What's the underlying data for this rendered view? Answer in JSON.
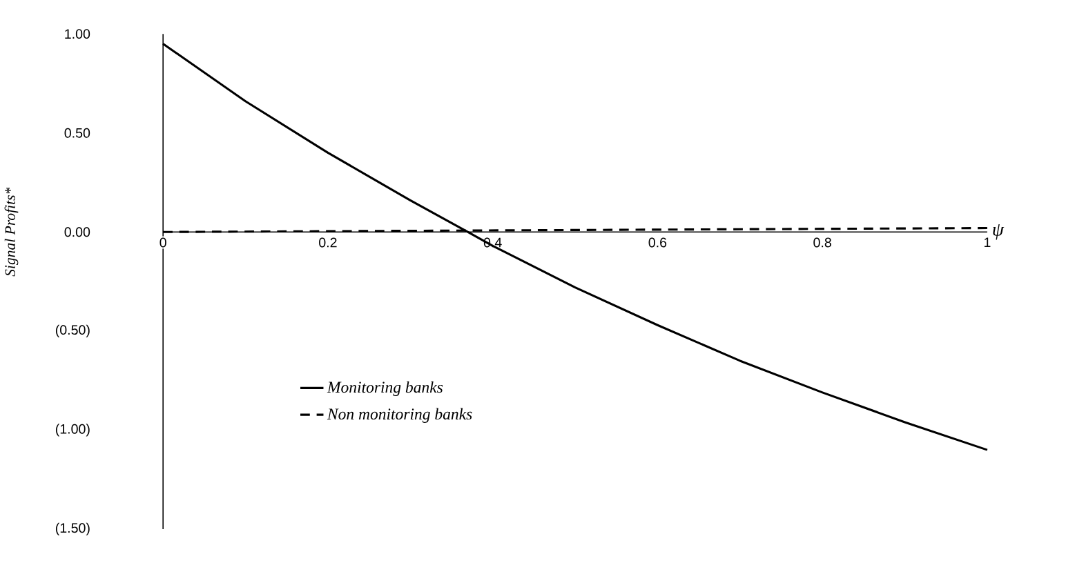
{
  "chart_data": {
    "type": "line",
    "xlabel": "ψ",
    "ylabel": "Signal Profits*",
    "xlim": [
      0,
      1
    ],
    "ylim": [
      -1.5,
      1.0
    ],
    "xticks": [
      0,
      0.2,
      0.4,
      0.6,
      0.8,
      1
    ],
    "yticks": [
      {
        "value": 1.0,
        "label": "1.00"
      },
      {
        "value": 0.5,
        "label": "0.50"
      },
      {
        "value": 0,
        "label": "0.00"
      },
      {
        "value": -0.5,
        "label": "(0.50)"
      },
      {
        "value": -1.0,
        "label": "(1.00)"
      },
      {
        "value": -1.5,
        "label": "(1.50)"
      }
    ],
    "legend": "bottom left",
    "series": [
      {
        "name": "Monitoring banks",
        "color": "#000000",
        "line_style": "solid",
        "x": [
          0,
          0.1,
          0.2,
          0.3,
          0.37,
          0.4,
          0.5,
          0.6,
          0.7,
          0.8,
          0.9,
          1
        ],
        "values": [
          0.95,
          0.66,
          0.4,
          0.16,
          0.0,
          -0.07,
          -0.28,
          -0.47,
          -0.65,
          -0.81,
          -0.96,
          -1.1
        ]
      },
      {
        "name": "Non monitoring banks",
        "color": "#000000",
        "line_style": "dashed",
        "x": [
          0,
          1
        ],
        "values": [
          0.0,
          0.02
        ]
      }
    ]
  }
}
